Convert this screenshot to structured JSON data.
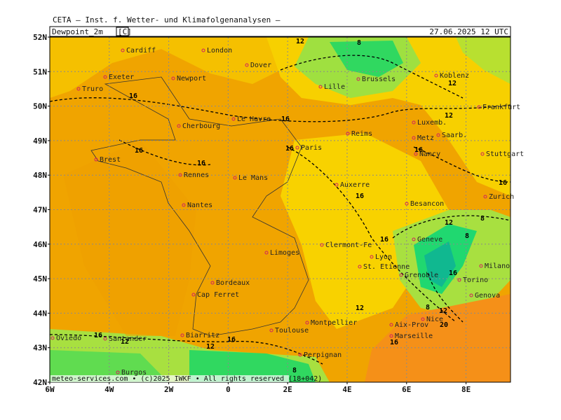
{
  "header": {
    "title": "CETA — Inst. f. Wetter- und Klimafolgenanalysen —",
    "field": "Dewpoint_2m",
    "unit": "[C]",
    "valid_time": "27.06.2025 12 UTC"
  },
  "axes": {
    "lat_labels": [
      "52N",
      "51N",
      "50N",
      "49N",
      "48N",
      "47N",
      "46N",
      "45N",
      "44N",
      "43N",
      "42N"
    ],
    "lon_labels": [
      "6W",
      "4W",
      "2W",
      "0",
      "2E",
      "4E",
      "6E",
      "8E"
    ]
  },
  "cities": [
    "Cardiff",
    "London",
    "Dover",
    "Exeter",
    "Newport",
    "Truro",
    "Lille",
    "Brussels",
    "Koblenz",
    "Frankfurt",
    "Le Havre",
    "Cherbourg",
    "Luxemb.",
    "Reims",
    "Metz",
    "Saarb.",
    "Paris",
    "Nancy",
    "Stuttgart",
    "Brest",
    "Rennes",
    "Le Mans",
    "Auxerre",
    "Besancon",
    "Zurich",
    "Nantes",
    "Geneve",
    "Clermont-Fe",
    "Limoges",
    "Lyon",
    "St. Etienne",
    "Milano",
    "Grenoble",
    "Torino",
    "Bordeaux",
    "Cap Ferret",
    "Genova",
    "Nice",
    "Aix-Prov",
    "Montpellier",
    "Toulouse",
    "Marseille",
    "Biarritz",
    "Oviedo",
    "Santander",
    "Perpignan",
    "Burgos"
  ],
  "contour_labels": [
    "12",
    "8",
    "16",
    "12",
    "16",
    "12",
    "16",
    "16",
    "16",
    "16",
    "16",
    "16",
    "12",
    "8",
    "16",
    "8",
    "16",
    "8",
    "12",
    "20",
    "12",
    "16",
    "16",
    "12",
    "16",
    "12",
    "8"
  ],
  "footer": "meteo-services.com • (c)2025 IWKF • All rights reserved (18+042)"
}
